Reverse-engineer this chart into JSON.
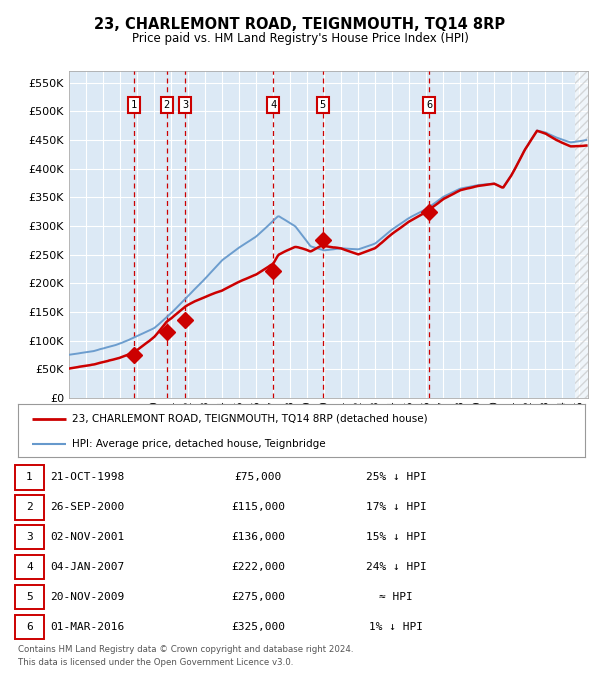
{
  "title": "23, CHARLEMONT ROAD, TEIGNMOUTH, TQ14 8RP",
  "subtitle": "Price paid vs. HM Land Registry's House Price Index (HPI)",
  "ylabel_ticks": [
    "£0",
    "£50K",
    "£100K",
    "£150K",
    "£200K",
    "£250K",
    "£300K",
    "£350K",
    "£400K",
    "£450K",
    "£500K",
    "£550K"
  ],
  "ytick_values": [
    0,
    50000,
    100000,
    150000,
    200000,
    250000,
    300000,
    350000,
    400000,
    450000,
    500000,
    550000
  ],
  "xmin": 1995.0,
  "xmax": 2025.5,
  "ymin": 0,
  "ymax": 570000,
  "sale_dates_num": [
    1998.81,
    2000.74,
    2001.84,
    2007.01,
    2009.9,
    2016.17
  ],
  "sale_prices": [
    75000,
    115000,
    136000,
    222000,
    275000,
    325000
  ],
  "sale_labels": [
    "1",
    "2",
    "3",
    "4",
    "5",
    "6"
  ],
  "transactions": [
    {
      "num": "1",
      "date": "21-OCT-1998",
      "price": "£75,000",
      "note": "25% ↓ HPI"
    },
    {
      "num": "2",
      "date": "26-SEP-2000",
      "price": "£115,000",
      "note": "17% ↓ HPI"
    },
    {
      "num": "3",
      "date": "02-NOV-2001",
      "price": "£136,000",
      "note": "15% ↓ HPI"
    },
    {
      "num": "4",
      "date": "04-JAN-2007",
      "price": "£222,000",
      "note": "24% ↓ HPI"
    },
    {
      "num": "5",
      "date": "20-NOV-2009",
      "price": "£275,000",
      "note": "≈ HPI"
    },
    {
      "num": "6",
      "date": "01-MAR-2016",
      "price": "£325,000",
      "note": "1% ↓ HPI"
    }
  ],
  "legend_entries": [
    {
      "label": "23, CHARLEMONT ROAD, TEIGNMOUTH, TQ14 8RP (detached house)",
      "color": "#cc0000",
      "lw": 2.0
    },
    {
      "label": "HPI: Average price, detached house, Teignbridge",
      "color": "#6699cc",
      "lw": 1.5
    }
  ],
  "footnote1": "Contains HM Land Registry data © Crown copyright and database right 2024.",
  "footnote2": "This data is licensed under the Open Government Licence v3.0.",
  "bg_color": "#dce9f5",
  "grid_color": "#ffffff",
  "dashed_color": "#cc0000",
  "hpi_anchors": [
    [
      1995.0,
      75000
    ],
    [
      1996.5,
      82000
    ],
    [
      1998.0,
      95000
    ],
    [
      1999.0,
      108000
    ],
    [
      2000.0,
      122000
    ],
    [
      2001.0,
      148000
    ],
    [
      2002.0,
      178000
    ],
    [
      2003.0,
      208000
    ],
    [
      2004.0,
      240000
    ],
    [
      2005.0,
      262000
    ],
    [
      2006.0,
      282000
    ],
    [
      2007.3,
      318000
    ],
    [
      2008.3,
      300000
    ],
    [
      2009.2,
      265000
    ],
    [
      2010.0,
      258000
    ],
    [
      2011.0,
      262000
    ],
    [
      2012.0,
      260000
    ],
    [
      2013.0,
      270000
    ],
    [
      2014.0,
      295000
    ],
    [
      2015.0,
      315000
    ],
    [
      2016.0,
      330000
    ],
    [
      2017.0,
      352000
    ],
    [
      2018.0,
      366000
    ],
    [
      2019.0,
      372000
    ],
    [
      2020.0,
      375000
    ],
    [
      2020.5,
      368000
    ],
    [
      2021.0,
      390000
    ],
    [
      2021.8,
      435000
    ],
    [
      2022.5,
      468000
    ],
    [
      2023.0,
      465000
    ],
    [
      2023.5,
      458000
    ],
    [
      2024.0,
      452000
    ],
    [
      2024.5,
      448000
    ],
    [
      2025.4,
      452000
    ]
  ],
  "red_scale_anchors": [
    [
      1995.0,
      0.68
    ],
    [
      1998.81,
      0.75
    ],
    [
      2000.74,
      0.94
    ],
    [
      2001.84,
      0.92
    ],
    [
      2004.0,
      0.78
    ],
    [
      2007.01,
      0.76
    ],
    [
      2009.9,
      1.035
    ],
    [
      2012.0,
      0.97
    ],
    [
      2016.17,
      0.99
    ],
    [
      2020.0,
      1.0
    ],
    [
      2022.5,
      1.0
    ],
    [
      2025.4,
      0.98
    ]
  ]
}
